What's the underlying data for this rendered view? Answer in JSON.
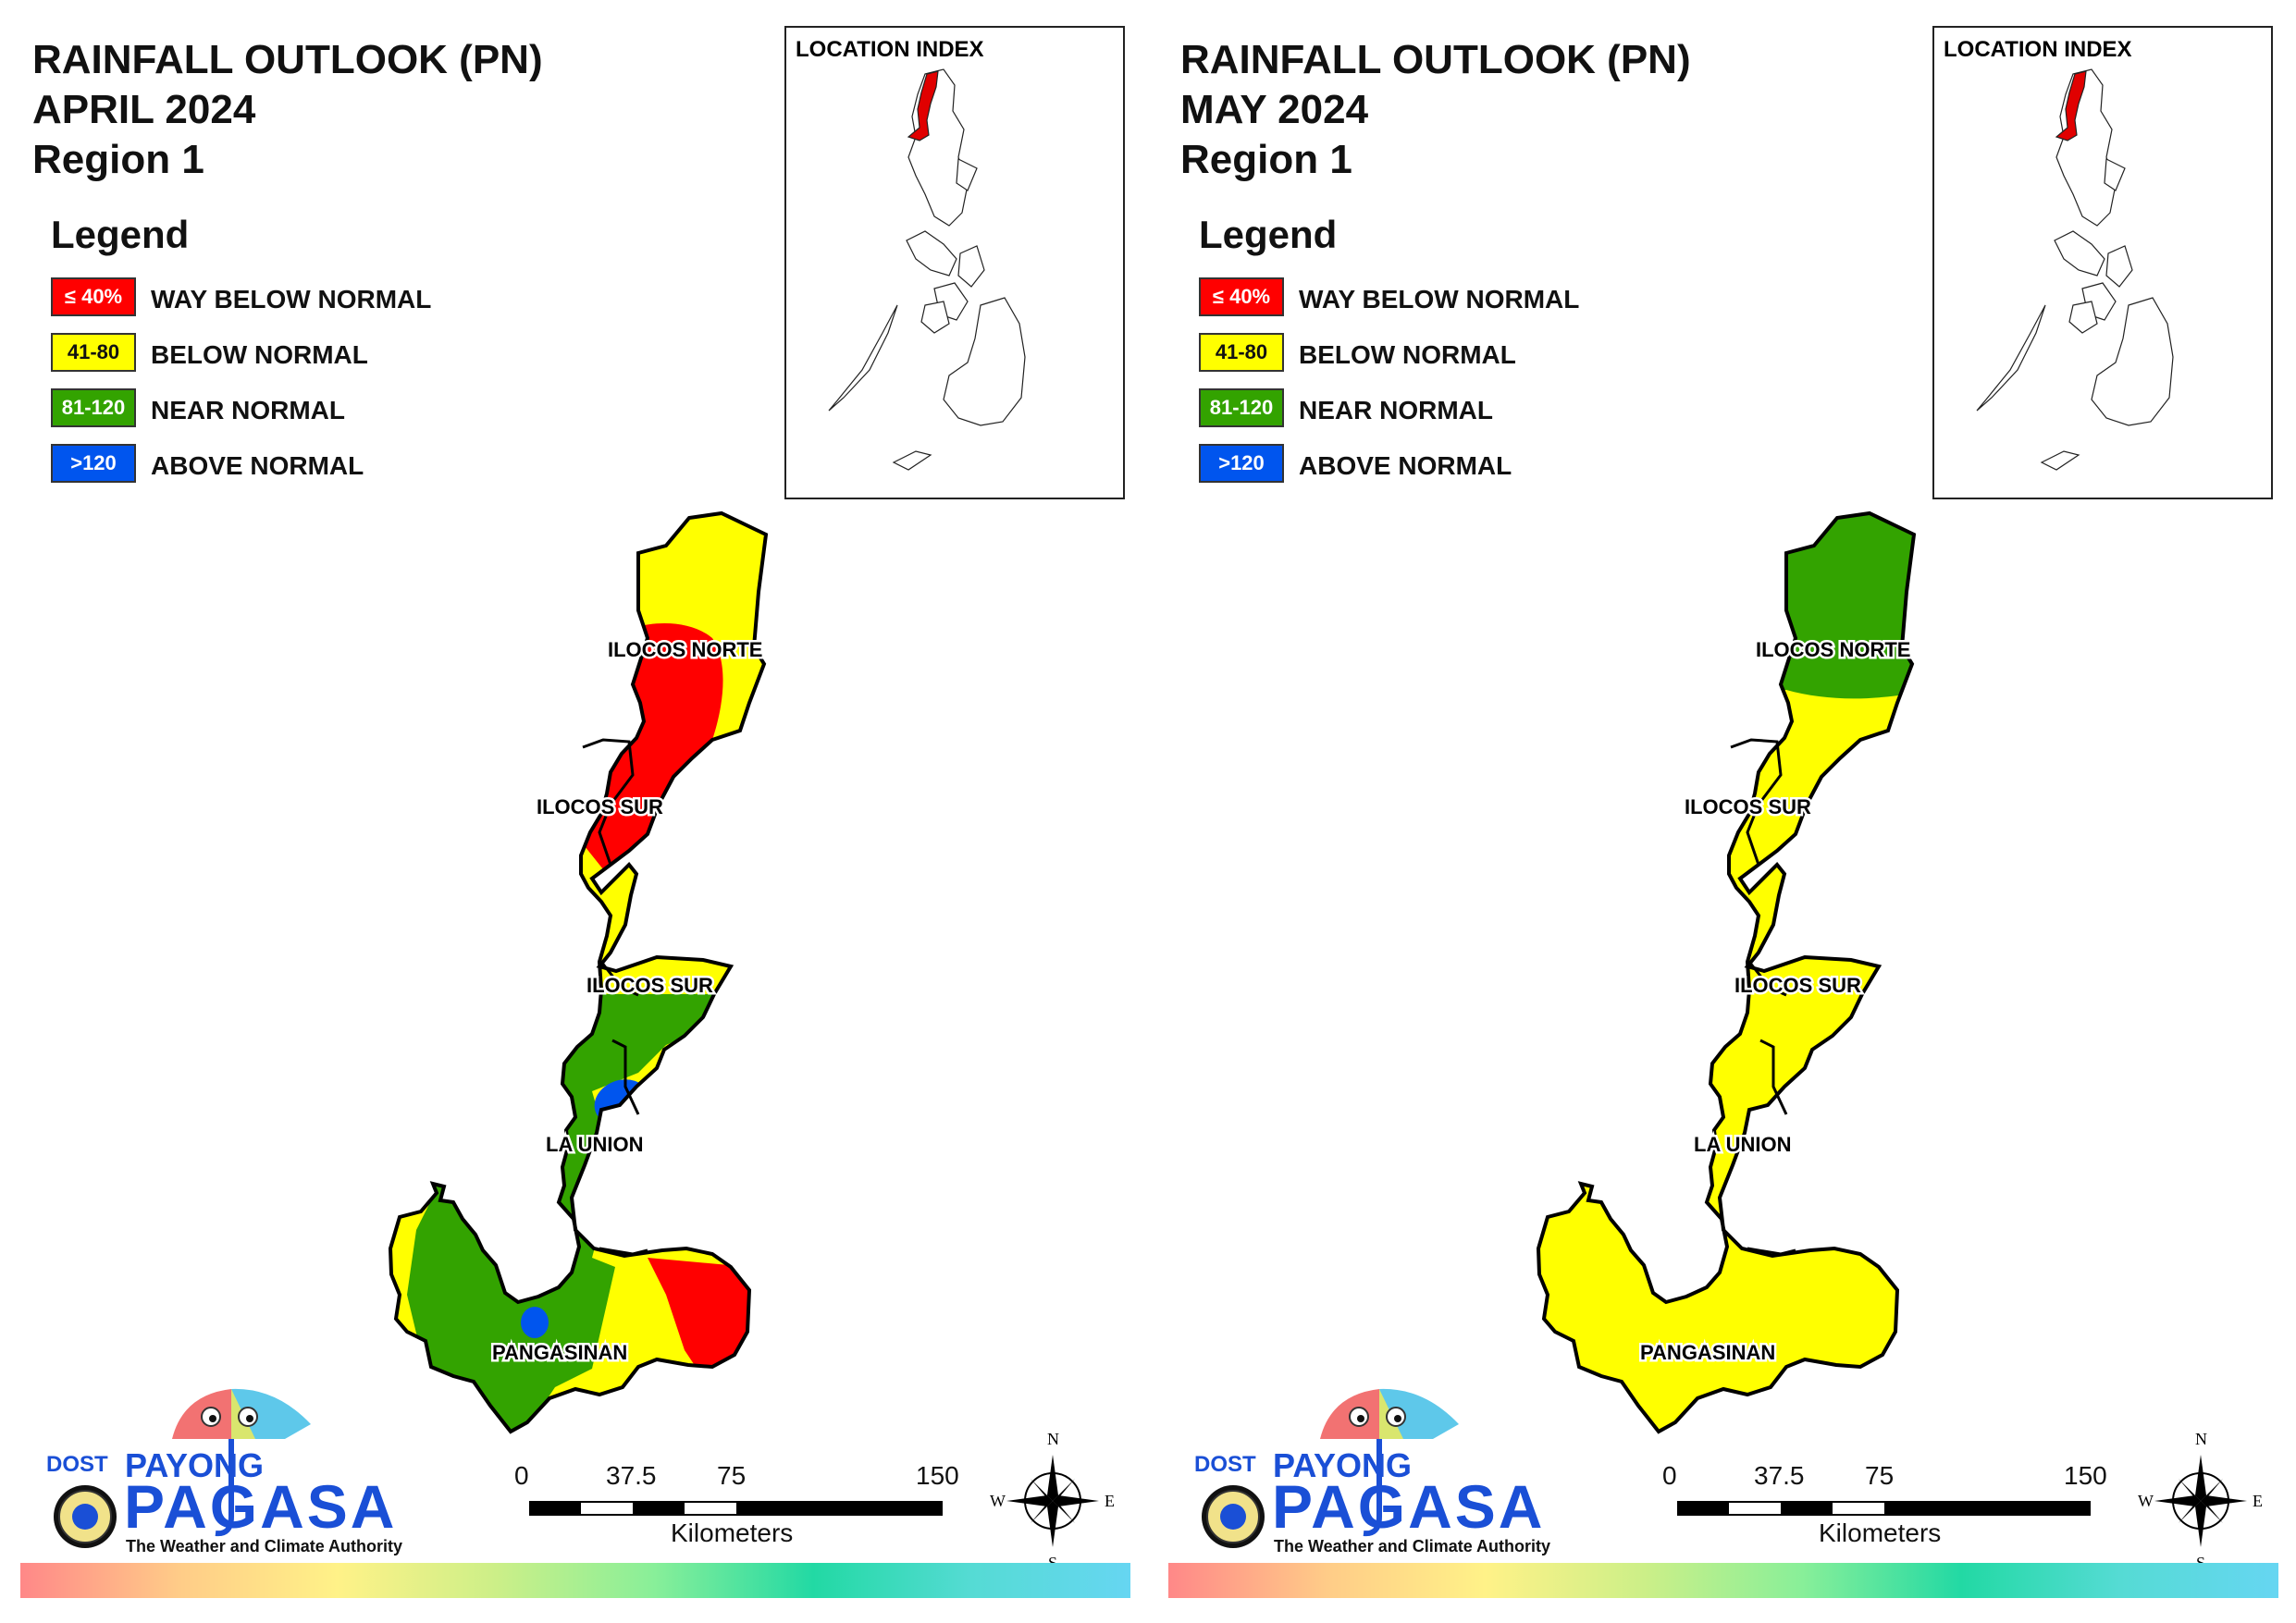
{
  "colors": {
    "way_below": "#ff0000",
    "below": "#ffff00",
    "near": "#33a300",
    "above": "#0055ee"
  },
  "panels": [
    {
      "title": "RAINFALL OUTLOOK (PN)",
      "period": "APRIL 2024",
      "region": "Region 1",
      "legend_title": "Legend",
      "legend": [
        {
          "swatch": "≤ 40%",
          "label": "WAY BELOW NORMAL",
          "color": "#ff0000"
        },
        {
          "swatch": "41-80",
          "label": "BELOW NORMAL",
          "color": "#ffff00"
        },
        {
          "swatch": "81-120",
          "label": "NEAR NORMAL",
          "color": "#33a300"
        },
        {
          "swatch": ">120",
          "label": "ABOVE NORMAL",
          "color": "#0055ee"
        }
      ],
      "location_index_title": "LOCATION INDEX",
      "provinces": [
        "ILOCOS NORTE",
        "ILOCOS SUR",
        "ILOCOS SUR",
        "LA UNION",
        "PANGASINAN"
      ],
      "scale": {
        "ticks": [
          "0",
          "37.5",
          "75",
          "150"
        ],
        "unit": "Kilometers"
      },
      "compass": {
        "n": "N",
        "s": "S",
        "e": "E",
        "w": "W"
      },
      "logo": {
        "dost": "DOST",
        "payong": "PAYONG",
        "pagasa": "PAGASA",
        "tagline": "The Weather and Climate Authority"
      }
    },
    {
      "title": "RAINFALL OUTLOOK (PN)",
      "period": "MAY 2024",
      "region": "Region 1",
      "legend_title": "Legend",
      "legend": [
        {
          "swatch": "≤ 40%",
          "label": "WAY BELOW NORMAL",
          "color": "#ff0000"
        },
        {
          "swatch": "41-80",
          "label": "BELOW NORMAL",
          "color": "#ffff00"
        },
        {
          "swatch": "81-120",
          "label": "NEAR NORMAL",
          "color": "#33a300"
        },
        {
          "swatch": ">120",
          "label": "ABOVE NORMAL",
          "color": "#0055ee"
        }
      ],
      "location_index_title": "LOCATION INDEX",
      "provinces": [
        "ILOCOS NORTE",
        "ILOCOS SUR",
        "ILOCOS SUR",
        "LA UNION",
        "PANGASINAN"
      ],
      "scale": {
        "ticks": [
          "0",
          "37.5",
          "75",
          "150"
        ],
        "unit": "Kilometers"
      },
      "compass": {
        "n": "N",
        "s": "S",
        "e": "E",
        "w": "W"
      },
      "logo": {
        "dost": "DOST",
        "payong": "PAYONG",
        "pagasa": "PAGASA",
        "tagline": "The Weather and Climate Authority"
      }
    }
  ]
}
